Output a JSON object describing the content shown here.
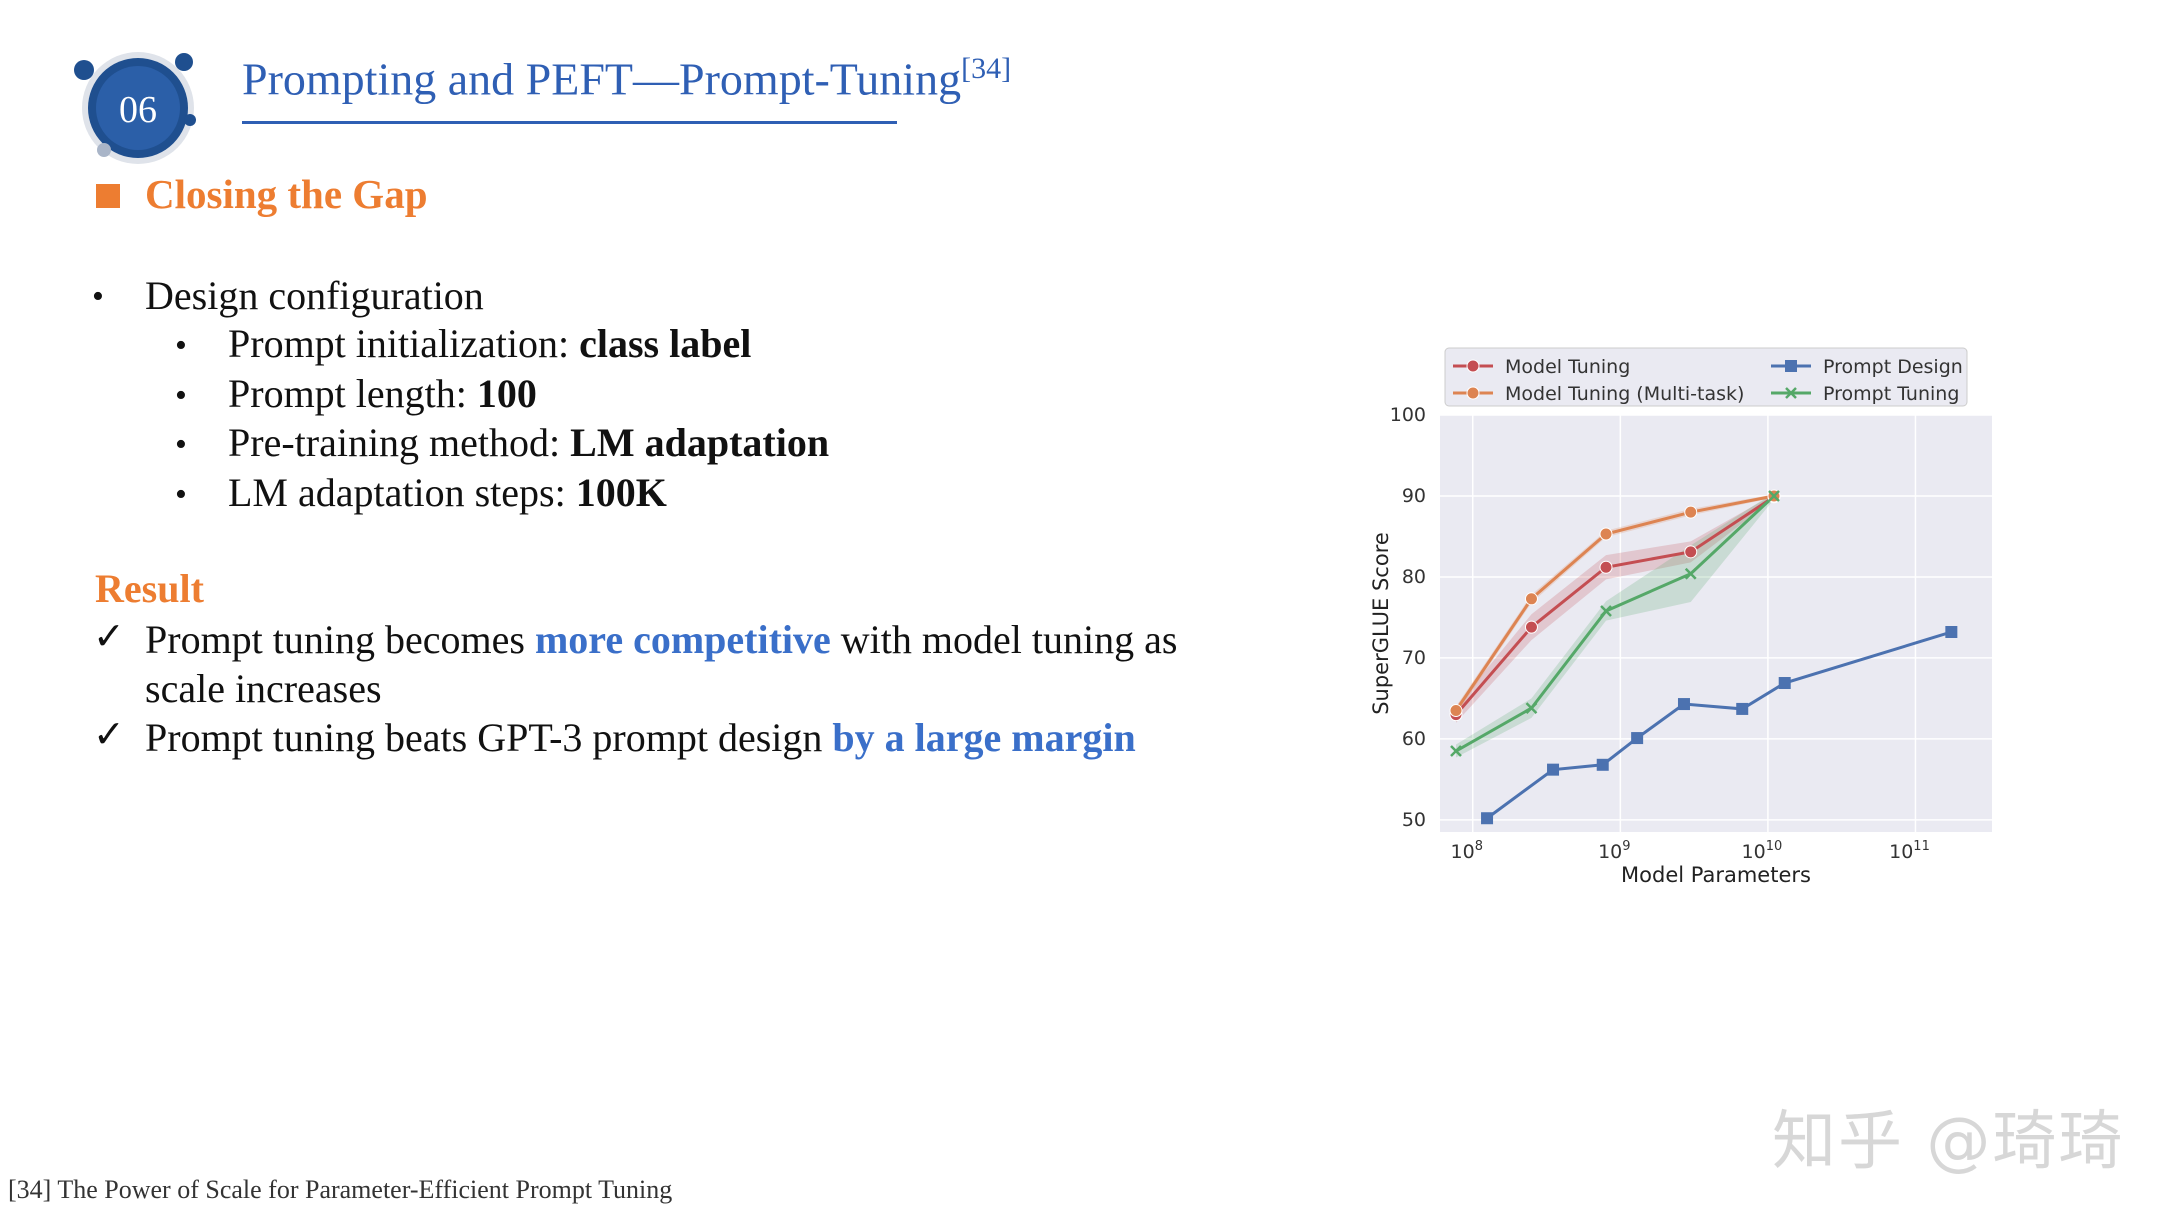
{
  "header": {
    "badge_number": "06",
    "title": "Prompting and PEFT—Prompt-Tuning",
    "title_ref": "[34]"
  },
  "section": {
    "title": "Closing the Gap"
  },
  "design": {
    "heading": "Design configuration",
    "items": [
      {
        "label": "Prompt initialization: ",
        "value": "class label"
      },
      {
        "label": "Prompt length: ",
        "value": "100"
      },
      {
        "label": "Pre-training method: ",
        "value": "LM adaptation"
      },
      {
        "label": "LM adaptation steps: ",
        "value": "100K"
      }
    ]
  },
  "result": {
    "heading": "Result",
    "item1": {
      "pre": "Prompt tuning becomes ",
      "highlight": "more competitive",
      "post": " with model tuning as",
      "line2": "scale increases"
    },
    "item2": {
      "pre": "Prompt tuning beats GPT-3 prompt design ",
      "highlight": "by a large margin"
    }
  },
  "footnote": "[34] The Power of Scale for Parameter-Efficient Prompt Tuning",
  "watermark": "知乎 @琦琦",
  "colors": {
    "accent_blue": "#2f5fb4",
    "accent_orange": "#ed7d31",
    "highlight_blue": "#3a6fc9"
  },
  "chart_data": {
    "type": "line",
    "title": "",
    "xlabel": "Model Parameters",
    "ylabel": "SuperGLUE Score",
    "x_scale": "log",
    "xlim": [
      60000000,
      330000000000
    ],
    "ylim": [
      48.5,
      100
    ],
    "y_ticks": [
      "50",
      "60",
      "70",
      "80",
      "90",
      "100"
    ],
    "x_ticks": [
      {
        "value": 100000000,
        "base": "10",
        "exp": "8"
      },
      {
        "value": 1000000000,
        "base": "10",
        "exp": "9"
      },
      {
        "value": 10000000000,
        "base": "10",
        "exp": "10"
      },
      {
        "value": 100000000000,
        "base": "10",
        "exp": "11"
      }
    ],
    "grid": true,
    "legend_position": "top",
    "series": [
      {
        "name": "Model Tuning",
        "color": "#c44e52",
        "marker": "circle",
        "x": [
          77000000,
          250000000,
          800000000,
          3000000000,
          11000000000
        ],
        "y": [
          63.0,
          73.8,
          81.2,
          83.1,
          89.9
        ],
        "band": [
          1.0,
          1.6,
          1.5,
          1.3,
          0.3
        ]
      },
      {
        "name": "Model Tuning (Multi-task)",
        "color": "#dd8452",
        "marker": "circle",
        "x": [
          77000000,
          250000000,
          800000000,
          3000000000,
          11000000000
        ],
        "y": [
          63.5,
          77.3,
          85.3,
          88.0,
          90.0
        ],
        "band": [
          0.5,
          0.5,
          0.4,
          0.4,
          0.2
        ]
      },
      {
        "name": "Prompt Design",
        "color": "#4c72b0",
        "marker": "square",
        "x": [
          125000000,
          350000000,
          760000000,
          1300000000,
          2700000000,
          6700000000,
          13000000000,
          175000000000
        ],
        "y": [
          50.2,
          56.2,
          56.8,
          60.1,
          64.3,
          63.7,
          66.9,
          73.2
        ]
      },
      {
        "name": "Prompt Tuning",
        "color": "#55a868",
        "marker": "x",
        "x": [
          77000000,
          250000000,
          800000000,
          3000000000,
          11000000000
        ],
        "y": [
          58.5,
          63.8,
          75.8,
          80.4,
          90.0
        ],
        "band": [
          0.8,
          1.2,
          1.2,
          3.5,
          0.4
        ]
      }
    ]
  }
}
